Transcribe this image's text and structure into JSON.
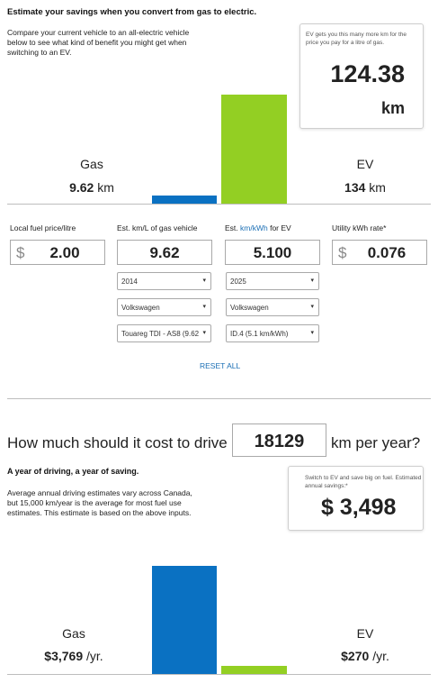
{
  "header": {
    "title": "Estimate your savings when you convert from gas to electric.",
    "intro": "Compare your current vehicle to an all-electric vehicle below to see what kind of benefit you might get when switching to an EV."
  },
  "km_box": {
    "note": "EV gets you this many more km for the price you pay for a litre of gas.",
    "value": "124.38",
    "unit": "km"
  },
  "distance_chart": {
    "gas_label": "Gas",
    "gas_value": "9.62",
    "gas_unit": "km",
    "ev_label": "EV",
    "ev_value": "134",
    "ev_unit": "km",
    "gas_km": 9.62,
    "ev_km": 134,
    "gas_color": "#0a71c2",
    "ev_color": "#93cf23"
  },
  "fields": {
    "fuel_price_label": "Local fuel price/litre",
    "fuel_price_currency": "$",
    "fuel_price_value": "2.00",
    "gas_eff_label": "Est. km/L of gas vehicle",
    "gas_eff_value": "9.62",
    "ev_eff_label_pre": "Est. ",
    "ev_eff_label_link": "km/kWh",
    "ev_eff_label_post": " for EV",
    "ev_eff_value": "5.100",
    "utility_label": "Utility kWh rate*",
    "utility_currency": "$",
    "utility_value": "0.076"
  },
  "gas_vehicle": {
    "year": "2014",
    "make": "Volkswagen",
    "model": "Touareg TDI - AS8 (9.62"
  },
  "ev_vehicle": {
    "year": "2025",
    "make": "Volkswagen",
    "model": "ID.4 (5.1 km/kWh)"
  },
  "reset_label": "RESET ALL",
  "drive": {
    "prefix": "How much should it cost to drive",
    "km_value": "18129",
    "suffix": "km per year?"
  },
  "year_section": {
    "title": "A year of driving, a year of saving.",
    "text": "Average annual driving estimates vary across Canada, but 15,000 km/year is the average for most fuel use estimates. This estimate is based on the above inputs."
  },
  "savings_box": {
    "note": "Switch to EV and save big on fuel. Estimated annual savings:*",
    "amount": "$ 3,498"
  },
  "cost_chart": {
    "gas_label": "Gas",
    "gas_value": "$3,769",
    "gas_unit": "/yr.",
    "ev_label": "EV",
    "ev_value": "$270",
    "ev_unit": "/yr.",
    "gas_cost": 3769,
    "ev_cost": 270
  },
  "icons": {
    "dropdown": "chevron-down-icon"
  }
}
